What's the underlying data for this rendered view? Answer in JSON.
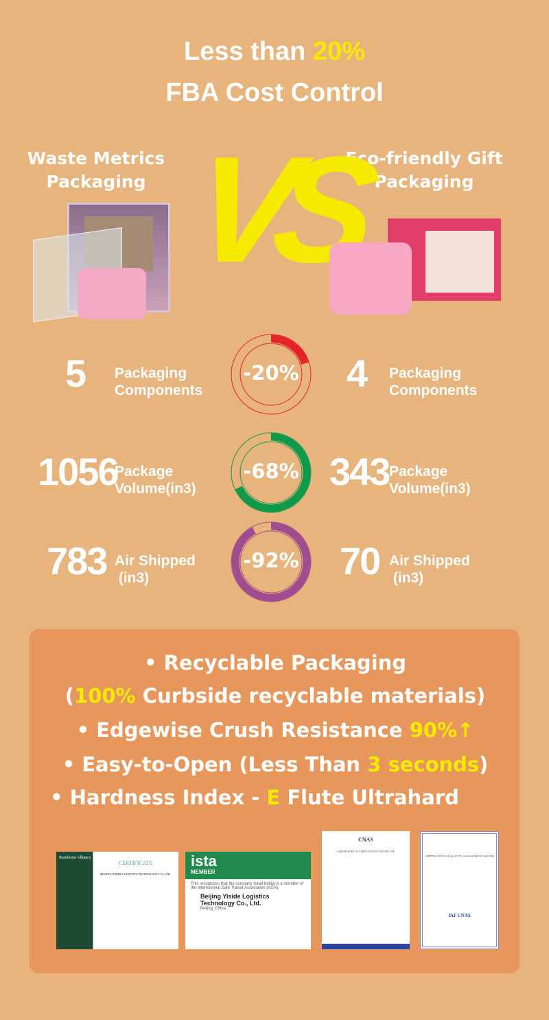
{
  "header": {
    "line1_prefix": "Less than ",
    "line1_highlight": "20%",
    "line2": "FBA Cost Control"
  },
  "left": {
    "title_line1": "Waste Metrics",
    "title_line2": "Packaging"
  },
  "right": {
    "title_line1": "Eco-friendly Gift",
    "title_line2": "Packaging"
  },
  "vs": "VS",
  "metrics": [
    {
      "left_value": "5",
      "right_value": "4",
      "label_line1": "Packaging",
      "label_line2": "Components",
      "reduction": "-20%",
      "percent": 20,
      "color": "#e3242b"
    },
    {
      "left_value": "1056",
      "right_value": "343",
      "label_line1": "Package",
      "label_line2": "Volume(in3)",
      "reduction": "-68%",
      "percent": 68,
      "color": "#0e9a4a"
    },
    {
      "left_value": "783",
      "right_value": "70",
      "label_line1": "Air Shipped",
      "label_line2": " (in3)",
      "reduction": "-92%",
      "percent": 92,
      "color": "#a04c8e"
    }
  ],
  "features": {
    "b1": "• Recyclable Packaging",
    "b2_open": "(",
    "b2_hl": "100%",
    "b2_rest": " Curbside recyclable materials)",
    "b3": "• Edgewise Crush Resistance ",
    "b3_hl": "90%↑",
    "b4": "• Easy-to-Open (Less Than ",
    "b4_hl": "3 seconds",
    "b4_close": ")",
    "b5": "• Hardness Index  -  ",
    "b5_hl": "E",
    "b5_rest": " Flute Ultrahard"
  },
  "certificates": [
    {
      "title": "CERTIFICATE",
      "company": "BEIJING YISIDE LOGISTICS TECHNOLOGY CO., LTD.",
      "logo": "Rainforest Alliance"
    },
    {
      "logo": "ista",
      "badge": "MEMBER",
      "text": "This recognizes that the company listed below is a member of the International Safe Transit Association (ISTA).",
      "company": "Beijing Yiside Logistics Technology Co., Ltd.",
      "city": "Beijing, China"
    },
    {
      "title": "LABORATORY ACCREDITATION CERTIFICATE",
      "logo": "CNAS"
    },
    {
      "title": "CERTIFICATION OF QUALITY MANAGEMENT SYSTEM",
      "logo": "IAF CNAS"
    }
  ],
  "colors": {
    "background": "#e6b47c",
    "panel": "#e8975c",
    "highlight": "#f6ea00"
  }
}
